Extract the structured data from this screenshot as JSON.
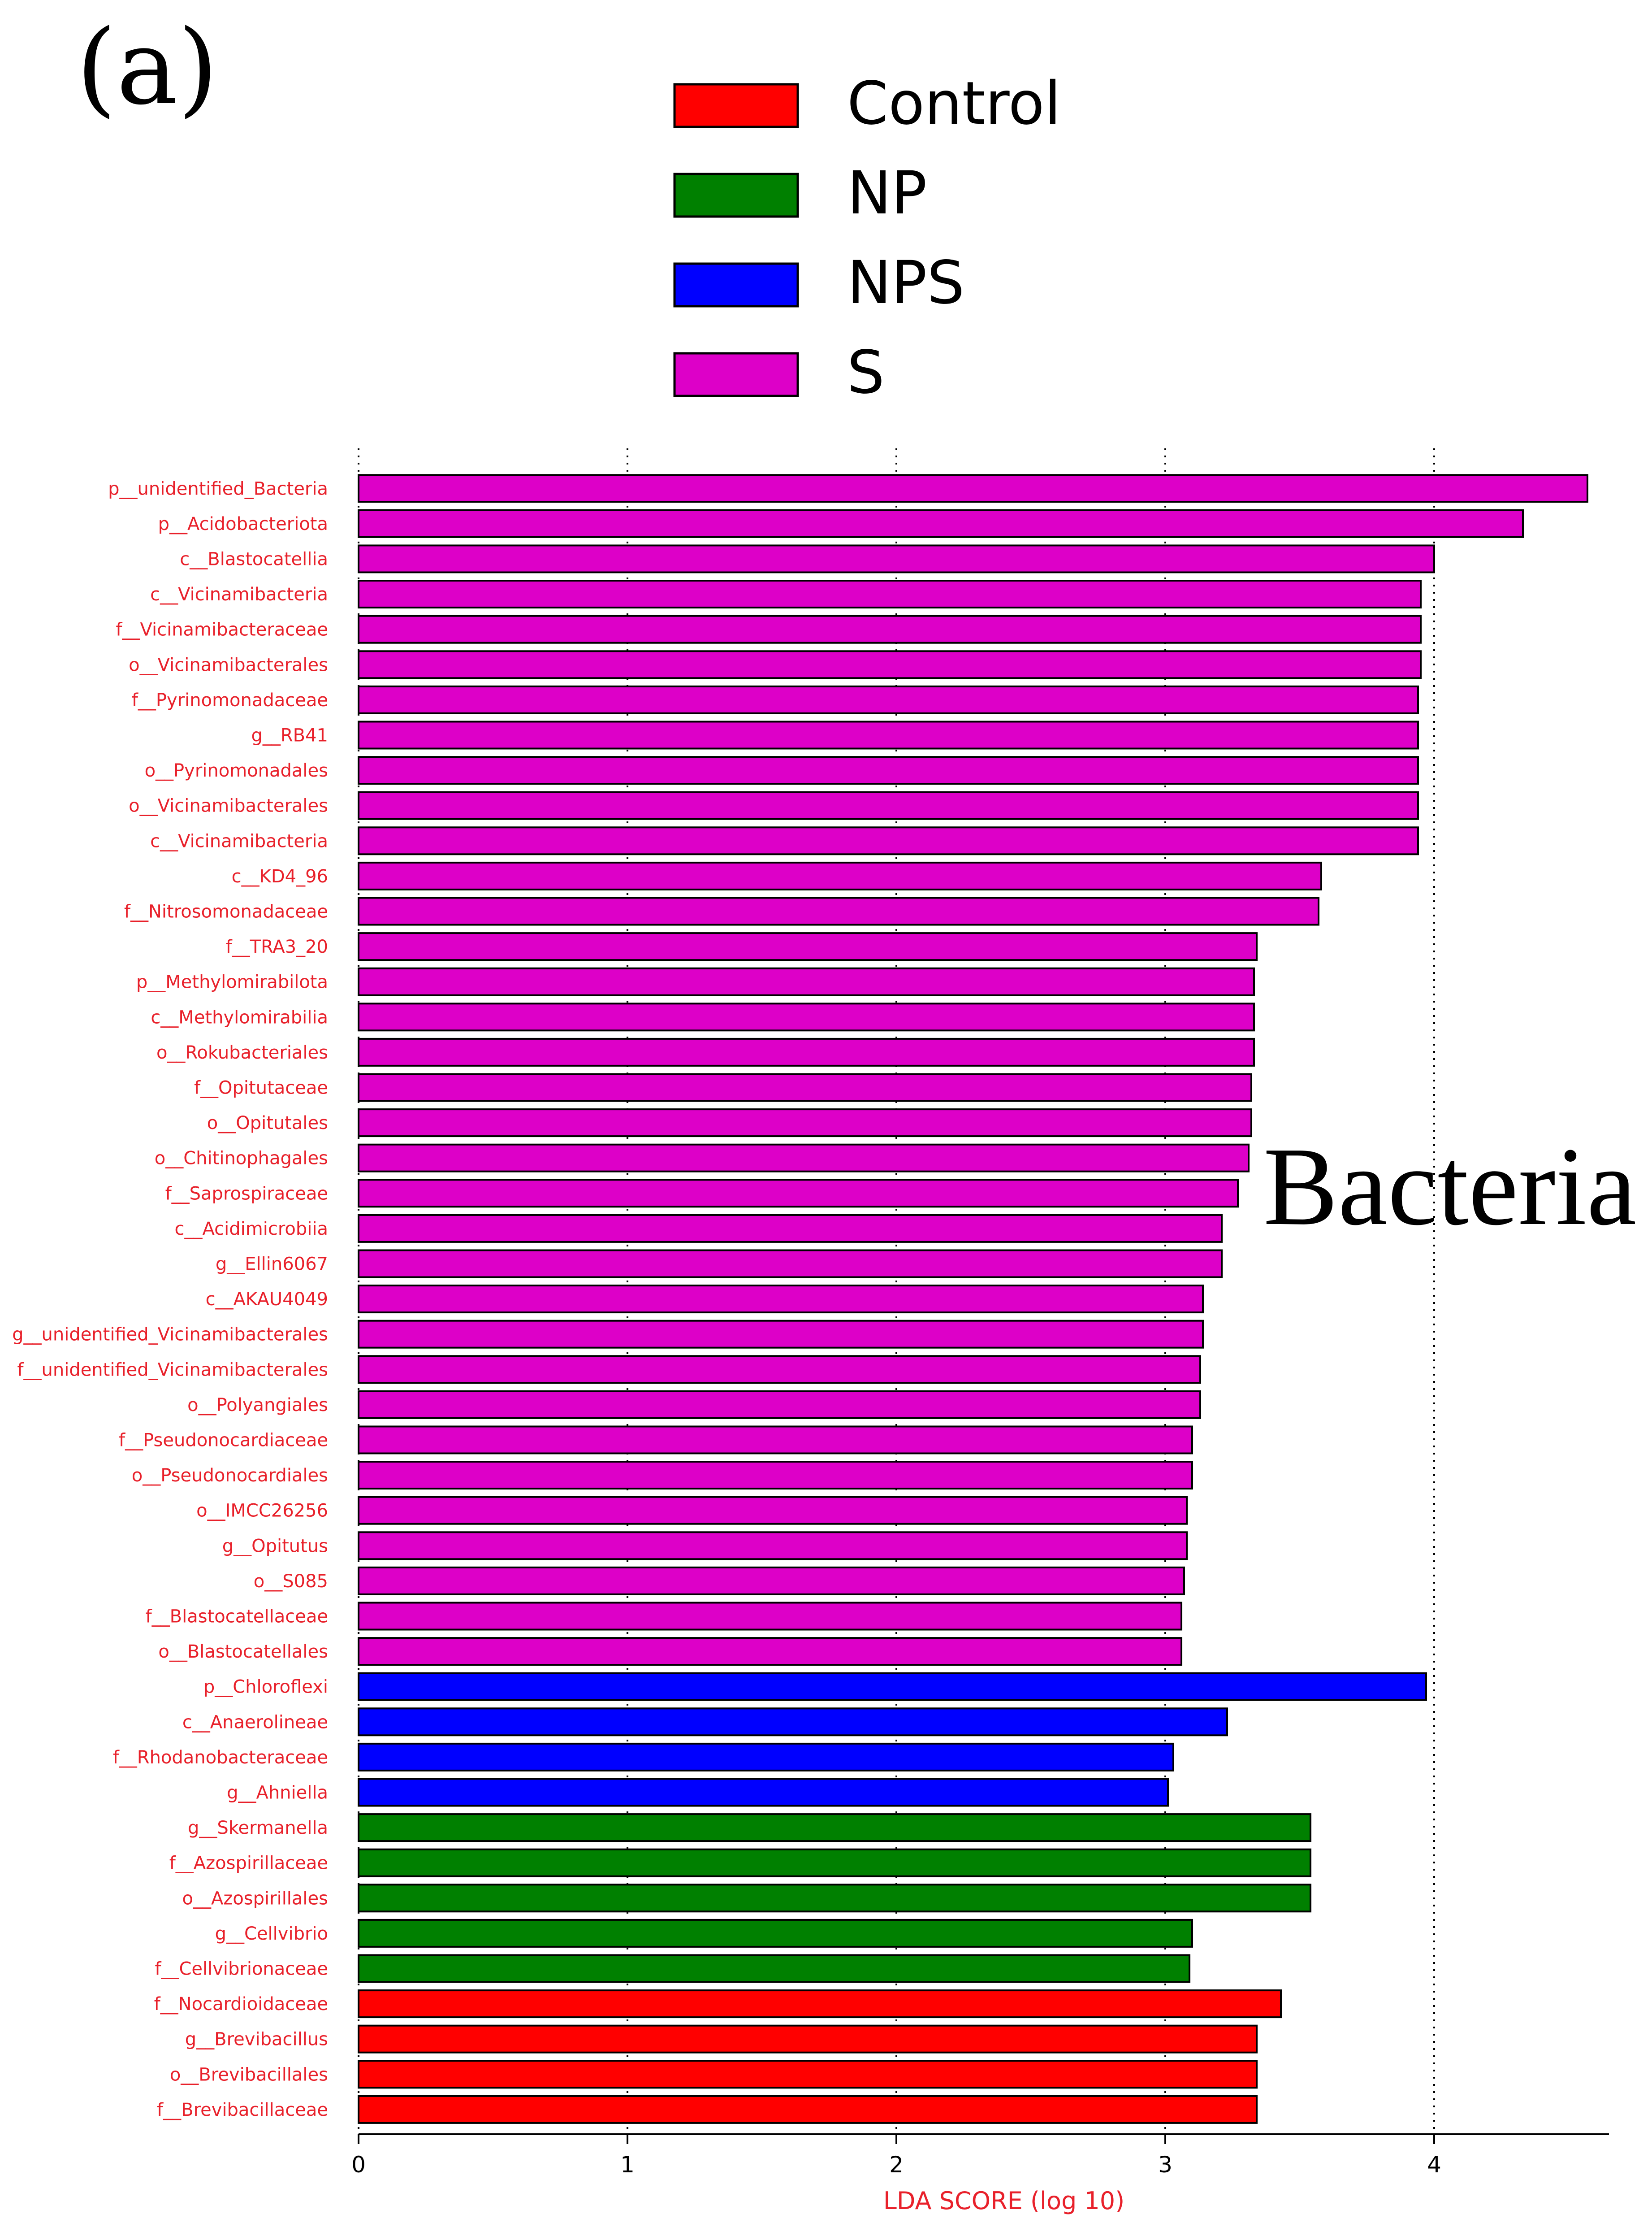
{
  "chart_data": {
    "type": "bar",
    "orientation": "horizontal",
    "panel_label": "(a)",
    "annotation": "Bacteria",
    "xlabel": "LDA SCORE (log 10)",
    "xlim": [
      0,
      4.65
    ],
    "xticks": [
      "0",
      "1",
      "2",
      "3",
      "4"
    ],
    "grid": "vertical dotted at ticks",
    "legend_position": "top-center",
    "legend": [
      {
        "name": "Control",
        "color": "#ff0000"
      },
      {
        "name": "NP",
        "color": "#008000"
      },
      {
        "name": "NPS",
        "color": "#0000ff"
      },
      {
        "name": "S",
        "color": "#dd00c8"
      }
    ],
    "bars": [
      {
        "label": "p__unidentified_Bacteria",
        "value": 4.57,
        "group": "S"
      },
      {
        "label": "p__Acidobacteriota",
        "value": 4.33,
        "group": "S"
      },
      {
        "label": "c__Blastocatellia",
        "value": 4.0,
        "group": "S"
      },
      {
        "label": "c__Vicinamibacteria",
        "value": 3.95,
        "group": "S"
      },
      {
        "label": "f__Vicinamibacteraceae",
        "value": 3.95,
        "group": "S"
      },
      {
        "label": "o__Vicinamibacterales",
        "value": 3.95,
        "group": "S"
      },
      {
        "label": "f__Pyrinomonadaceae",
        "value": 3.94,
        "group": "S"
      },
      {
        "label": "g__RB41",
        "value": 3.94,
        "group": "S"
      },
      {
        "label": "o__Pyrinomonadales",
        "value": 3.94,
        "group": "S"
      },
      {
        "label": "o__Vicinamibacterales",
        "value": 3.94,
        "group": "S"
      },
      {
        "label": "c__Vicinamibacteria",
        "value": 3.94,
        "group": "S"
      },
      {
        "label": "c__KD4_96",
        "value": 3.58,
        "group": "S"
      },
      {
        "label": "f__Nitrosomonadaceae",
        "value": 3.57,
        "group": "S"
      },
      {
        "label": "f__TRA3_20",
        "value": 3.34,
        "group": "S"
      },
      {
        "label": "p__Methylomirabilota",
        "value": 3.33,
        "group": "S"
      },
      {
        "label": "c__Methylomirabilia",
        "value": 3.33,
        "group": "S"
      },
      {
        "label": "o__Rokubacteriales",
        "value": 3.33,
        "group": "S"
      },
      {
        "label": "f__Opitutaceae",
        "value": 3.32,
        "group": "S"
      },
      {
        "label": "o__Opitutales",
        "value": 3.32,
        "group": "S"
      },
      {
        "label": "o__Chitinophagales",
        "value": 3.31,
        "group": "S"
      },
      {
        "label": "f__Saprospiraceae",
        "value": 3.27,
        "group": "S"
      },
      {
        "label": "c__Acidimicrobiia",
        "value": 3.21,
        "group": "S"
      },
      {
        "label": "g__Ellin6067",
        "value": 3.21,
        "group": "S"
      },
      {
        "label": "c__AKAU4049",
        "value": 3.14,
        "group": "S"
      },
      {
        "label": "g__unidentified_Vicinamibacterales",
        "value": 3.14,
        "group": "S"
      },
      {
        "label": "f__unidentified_Vicinamibacterales",
        "value": 3.13,
        "group": "S"
      },
      {
        "label": "o__Polyangiales",
        "value": 3.13,
        "group": "S"
      },
      {
        "label": "f__Pseudonocardiaceae",
        "value": 3.1,
        "group": "S"
      },
      {
        "label": "o__Pseudonocardiales",
        "value": 3.1,
        "group": "S"
      },
      {
        "label": "o__IMCC26256",
        "value": 3.08,
        "group": "S"
      },
      {
        "label": "g__Opitutus",
        "value": 3.08,
        "group": "S"
      },
      {
        "label": "o__S085",
        "value": 3.07,
        "group": "S"
      },
      {
        "label": "f__Blastocatellaceae",
        "value": 3.06,
        "group": "S"
      },
      {
        "label": "o__Blastocatellales",
        "value": 3.06,
        "group": "S"
      },
      {
        "label": "p__Chloroflexi",
        "value": 3.97,
        "group": "NPS"
      },
      {
        "label": "c__Anaerolineae",
        "value": 3.23,
        "group": "NPS"
      },
      {
        "label": "f__Rhodanobacteraceae",
        "value": 3.03,
        "group": "NPS"
      },
      {
        "label": "g__Ahniella",
        "value": 3.01,
        "group": "NPS"
      },
      {
        "label": "g__Skermanella",
        "value": 3.54,
        "group": "NP"
      },
      {
        "label": "f__Azospirillaceae",
        "value": 3.54,
        "group": "NP"
      },
      {
        "label": "o__Azospirillales",
        "value": 3.54,
        "group": "NP"
      },
      {
        "label": "g__Cellvibrio",
        "value": 3.1,
        "group": "NP"
      },
      {
        "label": "f__Cellvibrionaceae",
        "value": 3.09,
        "group": "NP"
      },
      {
        "label": "f__Nocardioidaceae",
        "value": 3.43,
        "group": "Control"
      },
      {
        "label": "g__Brevibacillus",
        "value": 3.34,
        "group": "Control"
      },
      {
        "label": "o__Brevibacillales",
        "value": 3.34,
        "group": "Control"
      },
      {
        "label": "f__Brevibacillaceae",
        "value": 3.34,
        "group": "Control"
      }
    ]
  }
}
